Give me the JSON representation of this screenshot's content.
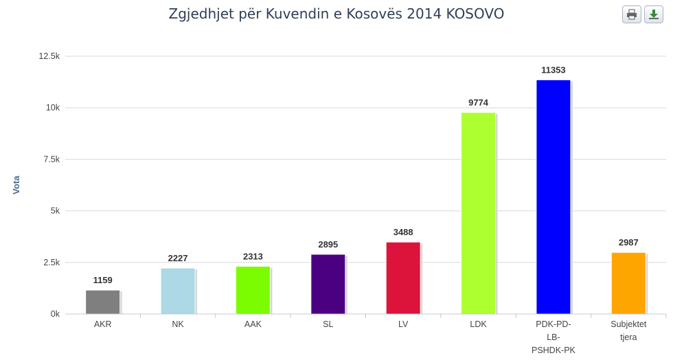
{
  "toolbar": {
    "print_icon": "printer-icon",
    "export_icon": "download-icon"
  },
  "chart_data": {
    "type": "bar",
    "title": "Zgjedhjet për Kuvendin e Kosovës 2014 KOSOVO",
    "xlabel": "",
    "ylabel": "Vota",
    "ylim": [
      0,
      12500
    ],
    "yticks": [
      {
        "value": 0,
        "label": "0k"
      },
      {
        "value": 2500,
        "label": "2.5k"
      },
      {
        "value": 5000,
        "label": "5k"
      },
      {
        "value": 7500,
        "label": "7.5k"
      },
      {
        "value": 10000,
        "label": "10k"
      },
      {
        "value": 12500,
        "label": "12.5k"
      }
    ],
    "grid": true,
    "legend": "none",
    "categories": [
      [
        "AKR"
      ],
      [
        "NK"
      ],
      [
        "AAK"
      ],
      [
        "SL"
      ],
      [
        "LV"
      ],
      [
        "LDK"
      ],
      [
        "PDK-PD-",
        "LB-",
        "PSHDK-PK"
      ],
      [
        "Subjektet",
        "tjera"
      ]
    ],
    "values": [
      1159,
      2227,
      2313,
      2895,
      3488,
      9774,
      11353,
      2987
    ],
    "colors": [
      "#7f7f7f",
      "#add8e6",
      "#7cfc00",
      "#4b0082",
      "#dc143c",
      "#adff2f",
      "#0000ff",
      "#ffa500"
    ]
  }
}
